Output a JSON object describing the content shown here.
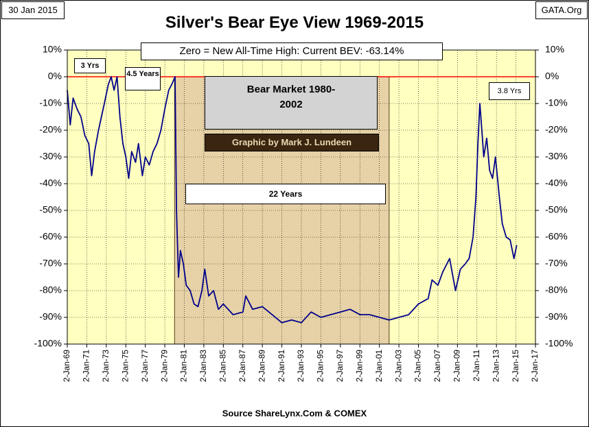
{
  "chart_data": {
    "type": "line",
    "title": "Silver's Bear Eye View 1969-2015",
    "date_label": "30 Jan 2015",
    "source_label": "GATA.Org",
    "footer": "Source ShareLynx.Com & COMEX",
    "annotations": [
      "Zero = New All-Time High: Current BEV: -63.14%",
      "3 Yrs",
      "4.5 Years",
      "Bear Market 1980-2002",
      "Graphic by Mark J. Lundeen",
      "22 Years",
      "3.8 Yrs"
    ],
    "shaded_range": [
      1980.0,
      2002.0
    ],
    "reference_line": 0,
    "reference_color": "#ff0000",
    "background": "#ffffc0",
    "shade_color": "#e6d2a6",
    "grid": true,
    "xlim": [
      1969,
      2017
    ],
    "xticks": [
      {
        "value": 1969,
        "label": "2-Jan-69"
      },
      {
        "value": 1971,
        "label": "2-Jan-71"
      },
      {
        "value": 1973,
        "label": "2-Jan-73"
      },
      {
        "value": 1975,
        "label": "2-Jan-75"
      },
      {
        "value": 1977,
        "label": "2-Jan-77"
      },
      {
        "value": 1979,
        "label": "2-Jan-79"
      },
      {
        "value": 1981,
        "label": "2-Jan-81"
      },
      {
        "value": 1983,
        "label": "2-Jan-83"
      },
      {
        "value": 1985,
        "label": "2-Jan-85"
      },
      {
        "value": 1987,
        "label": "2-Jan-87"
      },
      {
        "value": 1989,
        "label": "2-Jan-89"
      },
      {
        "value": 1991,
        "label": "2-Jan-91"
      },
      {
        "value": 1993,
        "label": "2-Jan-93"
      },
      {
        "value": 1995,
        "label": "2-Jan-95"
      },
      {
        "value": 1997,
        "label": "2-Jan-97"
      },
      {
        "value": 1999,
        "label": "2-Jan-99"
      },
      {
        "value": 2001,
        "label": "2-Jan-01"
      },
      {
        "value": 2003,
        "label": "2-Jan-03"
      },
      {
        "value": 2005,
        "label": "2-Jan-05"
      },
      {
        "value": 2007,
        "label": "2-Jan-07"
      },
      {
        "value": 2009,
        "label": "2-Jan-09"
      },
      {
        "value": 2011,
        "label": "2-Jan-11"
      },
      {
        "value": 2013,
        "label": "2-Jan-13"
      },
      {
        "value": 2015,
        "label": "2-Jan-15"
      },
      {
        "value": 2017,
        "label": "2-Jan-17"
      }
    ],
    "ylim": [
      -100,
      10
    ],
    "yticks": [
      {
        "value": 10,
        "label": "10%"
      },
      {
        "value": 0,
        "label": "0%"
      },
      {
        "value": -10,
        "label": "-10%"
      },
      {
        "value": -20,
        "label": "-20%"
      },
      {
        "value": -30,
        "label": "-30%"
      },
      {
        "value": -40,
        "label": "-40%"
      },
      {
        "value": -50,
        "label": "-50%"
      },
      {
        "value": -60,
        "label": "-60%"
      },
      {
        "value": -70,
        "label": "-70%"
      },
      {
        "value": -80,
        "label": "-80%"
      },
      {
        "value": -90,
        "label": "-90%"
      },
      {
        "value": -100,
        "label": "-100%"
      }
    ],
    "y2lim": [
      -100,
      10
    ],
    "y2ticks": [
      {
        "value": 10,
        "label": "10%"
      },
      {
        "value": 0,
        "label": "0%"
      },
      {
        "value": -10,
        "label": "-10%"
      },
      {
        "value": -20,
        "label": "-20%"
      },
      {
        "value": -30,
        "label": "-30%"
      },
      {
        "value": -40,
        "label": "-40%"
      },
      {
        "value": -50,
        "label": "-50%"
      },
      {
        "value": -60,
        "label": "-60%"
      },
      {
        "value": -70,
        "label": "-70%"
      },
      {
        "value": -80,
        "label": "-80%"
      },
      {
        "value": -90,
        "label": "-90%"
      },
      {
        "value": -100,
        "label": "-100%"
      }
    ],
    "series": [
      {
        "color": "#00008b",
        "x": [
          1969.0,
          1969.3,
          1969.6,
          1970.0,
          1970.4,
          1970.8,
          1971.2,
          1971.5,
          1971.8,
          1972.2,
          1972.5,
          1972.8,
          1973.2,
          1973.5,
          1973.8,
          1974.1,
          1974.4,
          1974.7,
          1975.0,
          1975.3,
          1975.6,
          1976.0,
          1976.3,
          1976.7,
          1977.0,
          1977.4,
          1977.8,
          1978.2,
          1978.6,
          1979.0,
          1979.4,
          1979.7,
          1980.05,
          1980.2,
          1980.4,
          1980.6,
          1980.9,
          1981.2,
          1981.6,
          1982.0,
          1982.4,
          1982.8,
          1983.1,
          1983.5,
          1984.0,
          1984.5,
          1985.0,
          1986.0,
          1987.0,
          1987.3,
          1988.0,
          1989.0,
          1990.0,
          1991.0,
          1992.0,
          1993.0,
          1994.0,
          1995.0,
          1996.0,
          1997.0,
          1998.0,
          1999.0,
          2000.0,
          2001.0,
          2002.0,
          2003.0,
          2004.0,
          2005.0,
          2006.0,
          2006.4,
          2007.0,
          2007.5,
          2008.2,
          2008.8,
          2009.3,
          2009.8,
          2010.2,
          2010.6,
          2010.9,
          2011.1,
          2011.3,
          2011.5,
          2011.7,
          2012.0,
          2012.3,
          2012.6,
          2012.9,
          2013.3,
          2013.6,
          2014.0,
          2014.4,
          2014.8,
          2015.08
        ],
        "values": [
          -5,
          -18,
          -8,
          -12,
          -15,
          -22,
          -25,
          -37,
          -28,
          -20,
          -15,
          -10,
          -3,
          0,
          -5,
          0,
          -15,
          -25,
          -30,
          -38,
          -28,
          -32,
          -25,
          -37,
          -30,
          -33,
          -28,
          -25,
          -20,
          -12,
          -5,
          -3,
          0,
          -50,
          -75,
          -65,
          -70,
          -78,
          -80,
          -85,
          -86,
          -80,
          -72,
          -82,
          -80,
          -87,
          -85,
          -89,
          -88,
          -82,
          -87,
          -86,
          -89,
          -92,
          -91,
          -92,
          -88,
          -90,
          -89,
          -88,
          -87,
          -89,
          -89,
          -90,
          -91,
          -90,
          -89,
          -85,
          -83,
          -76,
          -78,
          -73,
          -68,
          -80,
          -72,
          -70,
          -68,
          -60,
          -45,
          -25,
          -10,
          -20,
          -30,
          -23,
          -35,
          -38,
          -30,
          -45,
          -55,
          -60,
          -61,
          -68,
          -63
        ]
      }
    ]
  }
}
